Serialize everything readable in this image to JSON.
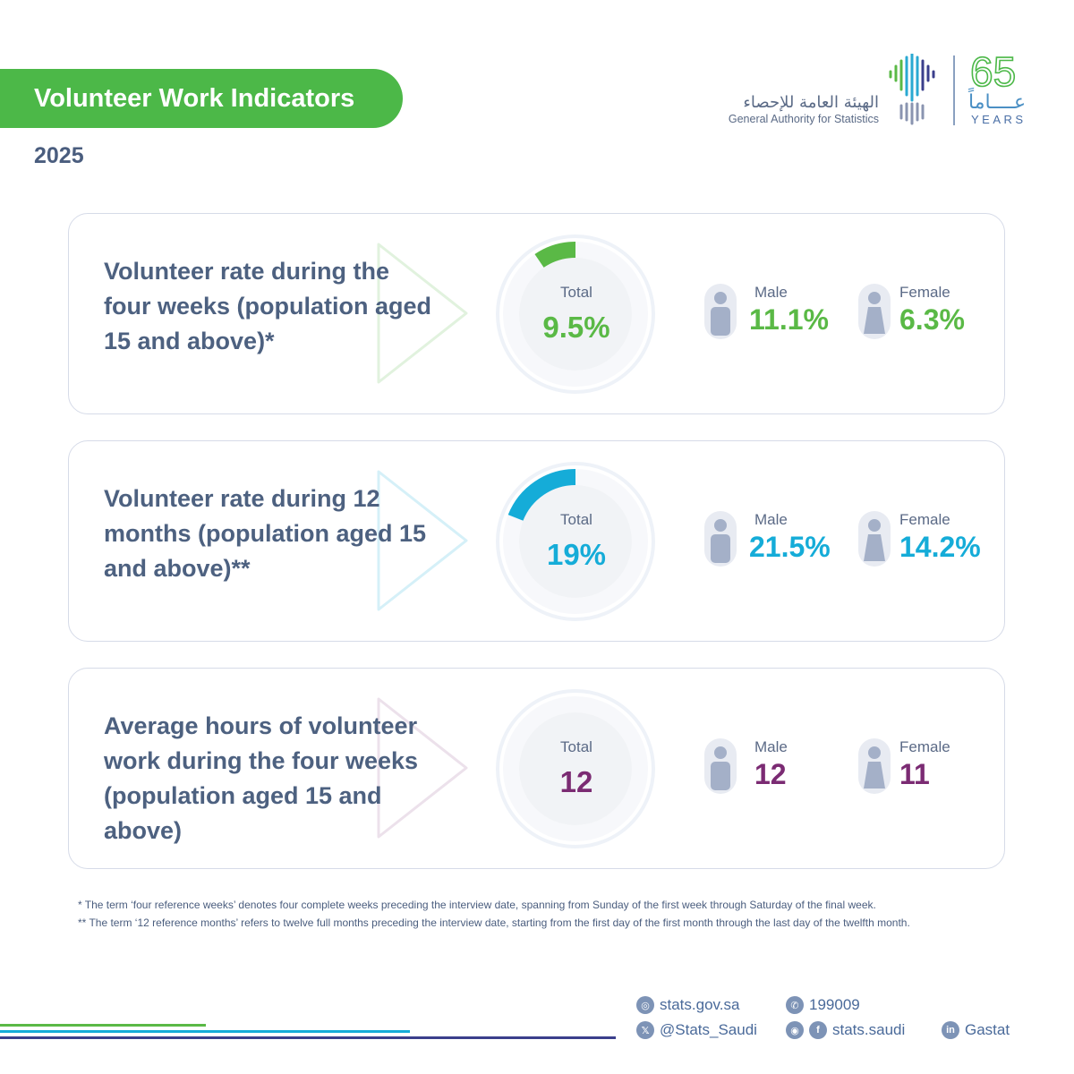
{
  "header": {
    "title": "Volunteer Work Indicators",
    "year": "2025",
    "logo_arabic": "الهيئة العامة للإحصاء",
    "logo_english": "General Authority for Statistics",
    "anniversary_number": "65",
    "anniversary_arabic": "عــــاماً",
    "anniversary_english": "YEARS"
  },
  "cards": [
    {
      "label": "Volunteer rate during the four weeks (population aged 15 and above)*",
      "total_label": "Total",
      "total_value": "9.5%",
      "total_fraction": 0.095,
      "male_label": "Male",
      "male_value": "11.1%",
      "female_label": "Female",
      "female_value": "6.3%",
      "accent": "#5ab946"
    },
    {
      "label": "Volunteer rate during 12 months  (population aged 15 and above)**",
      "total_label": "Total",
      "total_value": "19%",
      "total_fraction": 0.19,
      "male_label": "Male",
      "male_value": "21.5%",
      "female_label": "Female",
      "female_value": "14.2%",
      "accent": "#15acd8"
    },
    {
      "label": "Average hours of volunteer work during the four weeks (population aged 15 and above)",
      "total_label": "Total",
      "total_value": "12",
      "total_fraction": 0,
      "male_label": "Male",
      "male_value": "12",
      "female_label": "Female",
      "female_value": "11",
      "accent": "#7b2b73"
    }
  ],
  "footnotes": [
    "*  The term ‘four reference weeks’ denotes four complete weeks preceding the interview date, spanning from Sunday of the first week through Saturday of the final week.",
    "** The term ‘12 reference months’ refers to twelve full months preceding the interview date, starting from the first day of the first month through the last day of the twelfth month."
  ],
  "contacts": {
    "website": "stats.gov.sa",
    "phone": "199009",
    "twitter": "@Stats_Saudi",
    "social": "stats.saudi",
    "linkedin": "Gastat"
  },
  "colors": {
    "green": "#4cb848",
    "blue": "#15acd8",
    "purple": "#7b2b73",
    "navy": "#3b3f8c"
  }
}
